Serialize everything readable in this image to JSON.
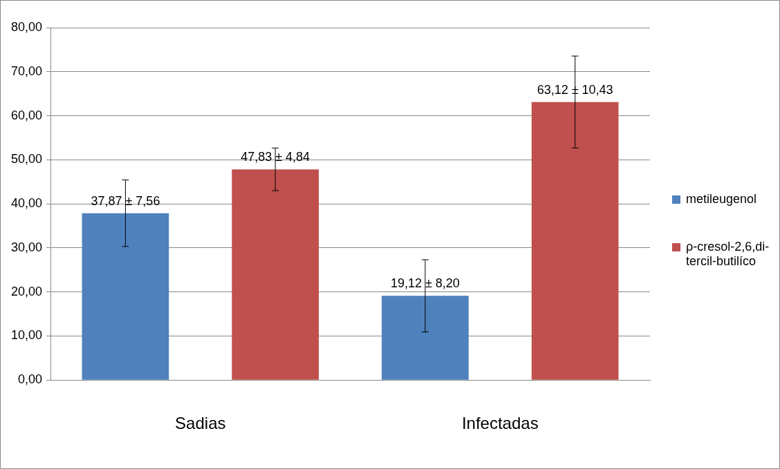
{
  "chart_data": {
    "type": "bar",
    "categories": [
      "Sadias",
      "Infectadas"
    ],
    "series": [
      {
        "name": "metileugenol",
        "color": "#4f81bd",
        "values": [
          37.87,
          19.12
        ],
        "errors": [
          7.56,
          8.2
        ],
        "value_labels": [
          "37,87 ± 7,56",
          "19,12 ± 8,20"
        ]
      },
      {
        "name": "ρ-cresol-2,6,di-tercil-butilíco",
        "color": "#c0504d",
        "values": [
          47.83,
          63.12
        ],
        "errors": [
          4.84,
          10.43
        ],
        "value_labels": [
          "47,83 ± 4,84",
          "63,12 ± 10,43"
        ]
      }
    ],
    "ylim": [
      0,
      80
    ],
    "yticks": [
      {
        "value": 0,
        "label": "0,00"
      },
      {
        "value": 10,
        "label": "10,00"
      },
      {
        "value": 20,
        "label": "20,00"
      },
      {
        "value": 30,
        "label": "30,00"
      },
      {
        "value": 40,
        "label": "40,00"
      },
      {
        "value": 50,
        "label": "50,00"
      },
      {
        "value": 60,
        "label": "60,00"
      },
      {
        "value": 70,
        "label": "70,00"
      },
      {
        "value": 80,
        "label": "80,00"
      }
    ],
    "grid": "y",
    "legend": "right"
  }
}
